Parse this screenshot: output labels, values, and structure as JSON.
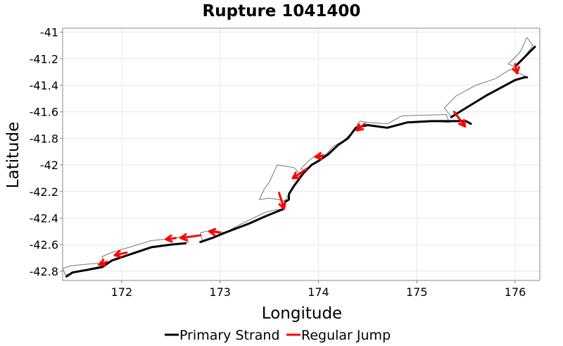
{
  "chart_data": {
    "type": "line",
    "title": "Rupture 1041400",
    "xlabel": "Longitude",
    "ylabel": "Latitude",
    "xlim": [
      171.4,
      176.25
    ],
    "ylim": [
      -42.87,
      -40.97
    ],
    "xticks": [
      172,
      173,
      174,
      175,
      176
    ],
    "yticks": [
      -41,
      -41.2,
      -41.4,
      -41.6,
      -41.8,
      -42,
      -42.2,
      -42.4,
      -42.6,
      -42.8
    ],
    "grid": true,
    "legend_position": "bottom",
    "legend": [
      {
        "name": "Primary Strand",
        "color": "#000000"
      },
      {
        "name": "Regular Jump",
        "color": "#ff0000"
      }
    ],
    "series": [
      {
        "name": "Primary Strand",
        "color": "#000000",
        "segments": [
          [
            [
              171.44,
              -42.84
            ],
            [
              171.5,
              -42.81
            ],
            [
              171.8,
              -42.77
            ],
            [
              171.9,
              -42.72
            ],
            [
              172.3,
              -42.62
            ],
            [
              172.5,
              -42.6
            ],
            [
              172.65,
              -42.59
            ]
          ],
          [
            [
              172.8,
              -42.58
            ],
            [
              172.92,
              -42.55
            ],
            [
              173.05,
              -42.51
            ],
            [
              173.3,
              -42.44
            ],
            [
              173.45,
              -42.39
            ],
            [
              173.55,
              -42.36
            ],
            [
              173.65,
              -42.33
            ],
            [
              173.66,
              -42.28
            ],
            [
              173.7,
              -42.26
            ],
            [
              173.7,
              -42.22
            ],
            [
              173.75,
              -42.16
            ],
            [
              173.85,
              -42.06
            ],
            [
              173.93,
              -42.0
            ],
            [
              174.0,
              -41.97
            ],
            [
              174.1,
              -41.92
            ],
            [
              174.2,
              -41.85
            ],
            [
              174.3,
              -41.8
            ],
            [
              174.38,
              -41.72
            ],
            [
              174.5,
              -41.7
            ],
            [
              174.7,
              -41.72
            ],
            [
              174.9,
              -41.68
            ],
            [
              175.15,
              -41.67
            ],
            [
              175.5,
              -41.67
            ],
            [
              175.55,
              -41.69
            ]
          ],
          [
            [
              175.35,
              -41.64
            ],
            [
              175.5,
              -41.57
            ],
            [
              175.7,
              -41.48
            ],
            [
              176.0,
              -41.36
            ],
            [
              176.1,
              -41.34
            ],
            [
              176.12,
              -41.34
            ]
          ],
          [
            [
              176.0,
              -41.26
            ],
            [
              176.08,
              -41.2
            ],
            [
              176.2,
              -41.11
            ]
          ]
        ]
      },
      {
        "name": "Regular Jump",
        "color": "#ff0000",
        "arrows": [
          [
            171.85,
            -42.73,
            171.77,
            -42.75
          ],
          [
            172.05,
            -42.66,
            171.93,
            -42.68
          ],
          [
            172.55,
            -42.55,
            172.45,
            -42.56
          ],
          [
            172.8,
            -42.53,
            172.6,
            -42.55
          ],
          [
            173.0,
            -42.51,
            172.89,
            -42.5
          ],
          [
            173.6,
            -42.21,
            173.65,
            -42.33
          ],
          [
            173.88,
            -42.03,
            173.74,
            -42.1
          ],
          [
            174.05,
            -41.93,
            173.97,
            -41.94
          ],
          [
            174.47,
            -41.69,
            174.39,
            -41.74
          ],
          [
            175.38,
            -41.6,
            175.49,
            -41.71
          ],
          [
            176.0,
            -41.24,
            176.02,
            -41.31
          ]
        ]
      }
    ],
    "section_outlines": [
      [
        [
          171.4,
          -42.78
        ],
        [
          171.48,
          -42.76
        ],
        [
          171.75,
          -42.74
        ],
        [
          171.8,
          -42.76
        ],
        [
          171.5,
          -42.81
        ],
        [
          171.43,
          -42.83
        ]
      ],
      [
        [
          171.8,
          -42.69
        ],
        [
          171.9,
          -42.66
        ],
        [
          172.3,
          -42.57
        ],
        [
          172.55,
          -42.55
        ],
        [
          172.65,
          -42.53
        ],
        [
          172.68,
          -42.58
        ],
        [
          172.5,
          -42.6
        ],
        [
          172.3,
          -42.62
        ],
        [
          171.9,
          -42.72
        ],
        [
          171.82,
          -42.75
        ]
      ],
      [
        [
          172.8,
          -42.51
        ],
        [
          172.92,
          -42.49
        ],
        [
          173.05,
          -42.51
        ],
        [
          172.92,
          -42.55
        ],
        [
          172.82,
          -42.57
        ]
      ],
      [
        [
          173.05,
          -42.51
        ],
        [
          173.2,
          -42.45
        ],
        [
          173.45,
          -42.36
        ],
        [
          173.55,
          -42.34
        ],
        [
          173.65,
          -42.33
        ],
        [
          173.55,
          -42.36
        ],
        [
          173.3,
          -42.44
        ],
        [
          173.1,
          -42.5
        ]
      ],
      [
        [
          173.4,
          -42.26
        ],
        [
          173.45,
          -42.18
        ],
        [
          173.5,
          -42.13
        ],
        [
          173.58,
          -42.0
        ],
        [
          173.75,
          -42.02
        ],
        [
          173.82,
          -42.07
        ],
        [
          173.75,
          -42.16
        ],
        [
          173.7,
          -42.22
        ],
        [
          173.66,
          -42.27
        ],
        [
          173.6,
          -42.26
        ],
        [
          173.5,
          -42.25
        ]
      ],
      [
        [
          173.82,
          -42.03
        ],
        [
          173.9,
          -41.97
        ],
        [
          173.97,
          -41.93
        ],
        [
          174.08,
          -41.92
        ],
        [
          174.15,
          -41.86
        ],
        [
          174.25,
          -41.82
        ],
        [
          174.35,
          -41.75
        ],
        [
          174.42,
          -41.67
        ],
        [
          174.5,
          -41.68
        ],
        [
          174.7,
          -41.69
        ],
        [
          174.85,
          -41.63
        ],
        [
          175.3,
          -41.62
        ],
        [
          175.33,
          -41.68
        ],
        [
          175.15,
          -41.67
        ],
        [
          174.9,
          -41.68
        ],
        [
          174.7,
          -41.72
        ],
        [
          174.5,
          -41.7
        ],
        [
          174.38,
          -41.72
        ],
        [
          174.3,
          -41.8
        ],
        [
          174.2,
          -41.85
        ],
        [
          174.1,
          -41.92
        ],
        [
          174.0,
          -41.97
        ],
        [
          173.93,
          -42.0
        ],
        [
          173.85,
          -42.04
        ]
      ],
      [
        [
          175.28,
          -41.57
        ],
        [
          175.4,
          -41.48
        ],
        [
          175.6,
          -41.4
        ],
        [
          175.8,
          -41.35
        ],
        [
          175.95,
          -41.28
        ],
        [
          176.1,
          -41.33
        ],
        [
          176.0,
          -41.36
        ],
        [
          175.7,
          -41.48
        ],
        [
          175.5,
          -41.57
        ],
        [
          175.35,
          -41.64
        ]
      ],
      [
        [
          175.93,
          -41.24
        ],
        [
          176.05,
          -41.15
        ],
        [
          176.12,
          -41.04
        ],
        [
          176.18,
          -41.1
        ],
        [
          176.08,
          -41.2
        ],
        [
          176.0,
          -41.26
        ]
      ]
    ]
  }
}
